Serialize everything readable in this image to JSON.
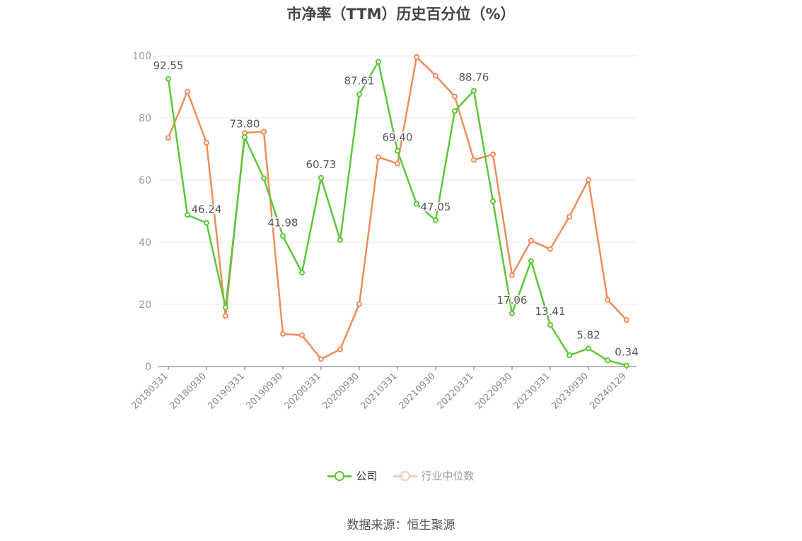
{
  "chart_data": {
    "type": "line",
    "title": "市净率（TTM）历史百分位（%）",
    "source": "数据来源：恒生聚源",
    "ylim": [
      0,
      100
    ],
    "yticks": [
      0,
      20,
      40,
      60,
      80,
      100
    ],
    "grid": true,
    "legend_position": "bottom",
    "x": [
      "20180331",
      "20180630",
      "20180930",
      "20181231",
      "20190331",
      "20190630",
      "20190930",
      "20191231",
      "20200331",
      "20200630",
      "20200930",
      "20201231",
      "20210331",
      "20210630",
      "20210930",
      "20211231",
      "20220331",
      "20220630",
      "20220930",
      "20221231",
      "20230331",
      "20230630",
      "20230930",
      "20231231",
      "20240129"
    ],
    "x_tick_labels": [
      "20180331",
      "20180930",
      "20190331",
      "20190930",
      "20200331",
      "20200930",
      "20210331",
      "20210930",
      "20220331",
      "20220930",
      "20230331",
      "20230930",
      "20240129"
    ],
    "series": [
      {
        "name": "公司",
        "color": "#5cc73a",
        "values": [
          92.55,
          48.8,
          46.24,
          19.0,
          73.8,
          60.6,
          41.98,
          30.2,
          60.73,
          40.7,
          87.61,
          98.1,
          69.4,
          52.4,
          47.05,
          82.2,
          88.76,
          53.2,
          17.06,
          34.0,
          13.41,
          3.6,
          5.82,
          2.0,
          0.34
        ],
        "labels": [
          "92.55",
          "",
          "46.24",
          "",
          "73.80",
          "",
          "41.98",
          "",
          "60.73",
          "",
          "87.61",
          "",
          "69.40",
          "",
          "47.05",
          "",
          "88.76",
          "",
          "17.06",
          "",
          "13.41",
          "",
          "5.82",
          "",
          "0.34"
        ]
      },
      {
        "name": "行业中位数",
        "color": "#f08c5a",
        "values": [
          73.6,
          88.5,
          72.0,
          16.3,
          75.2,
          75.6,
          10.5,
          10.1,
          2.4,
          5.5,
          20.1,
          67.4,
          65.3,
          99.6,
          93.6,
          86.9,
          66.5,
          68.3,
          29.4,
          40.5,
          37.8,
          48.2,
          60.1,
          21.5,
          15.0
        ]
      }
    ]
  }
}
